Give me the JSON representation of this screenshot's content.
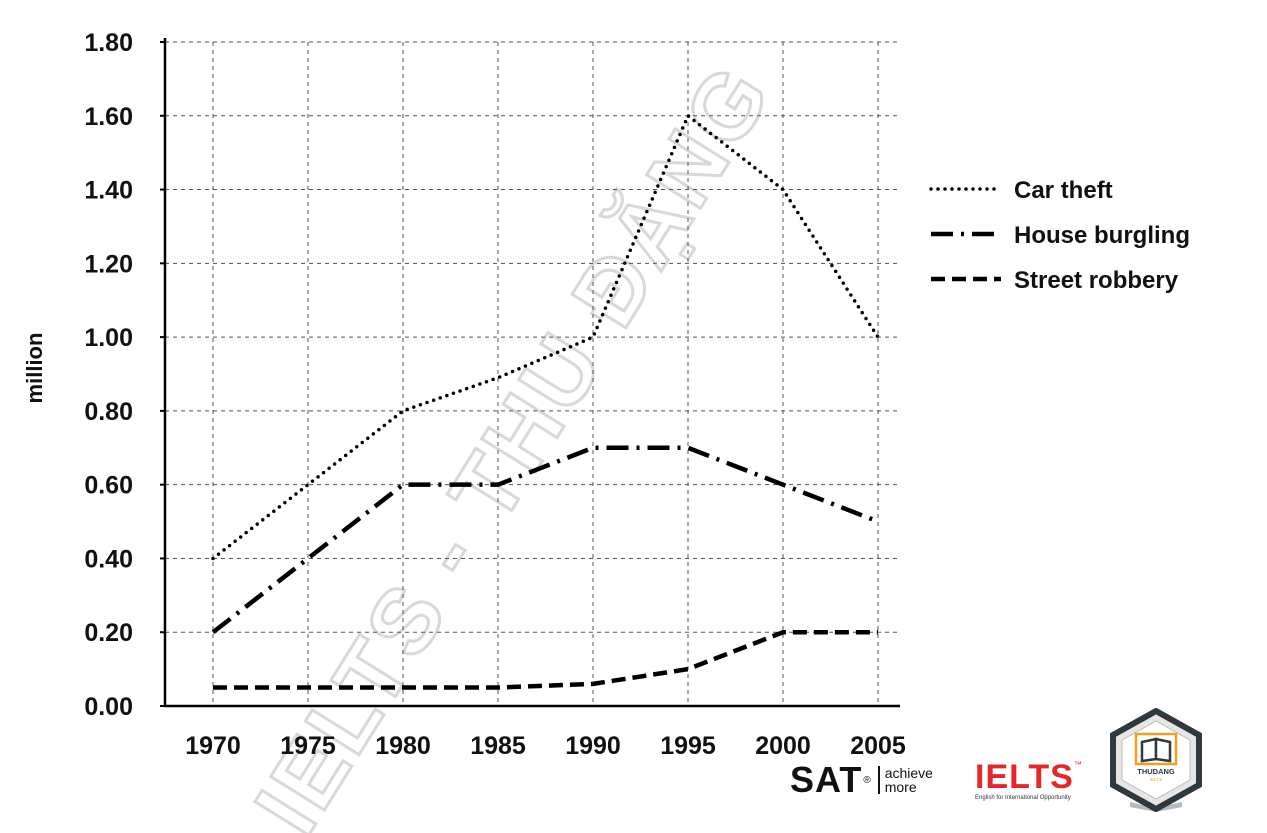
{
  "chart_data": {
    "type": "line",
    "title": "",
    "xlabel": "",
    "ylabel": "million",
    "x": [
      "1970",
      "1975",
      "1980",
      "1985",
      "1990",
      "1995",
      "2000",
      "2005"
    ],
    "yticks": [
      "0.00",
      "0.20",
      "0.40",
      "0.60",
      "0.80",
      "1.00",
      "1.20",
      "1.40",
      "1.60",
      "1.80"
    ],
    "ylim": [
      0,
      1.8
    ],
    "grid": true,
    "legend_position": "right",
    "series": [
      {
        "name": "Car theft",
        "style": "dotted",
        "values": [
          0.4,
          0.6,
          0.8,
          0.89,
          1.0,
          1.6,
          1.4,
          1.0
        ]
      },
      {
        "name": "House burgling",
        "style": "dash-dot",
        "values": [
          0.2,
          0.4,
          0.6,
          0.6,
          0.7,
          0.7,
          0.6,
          0.5
        ]
      },
      {
        "name": "Street robbery",
        "style": "dashed",
        "values": [
          0.05,
          0.05,
          0.05,
          0.05,
          0.06,
          0.1,
          0.2,
          0.2
        ]
      }
    ],
    "colors": {
      "lines": "#000000",
      "grid": "#555555"
    }
  },
  "watermark": {
    "text": "IELTS - THU ĐẶNG"
  },
  "logos": {
    "sat": {
      "word": "SAT",
      "reg": "®",
      "tagline_1": "achieve",
      "tagline_2": "more"
    },
    "ielts": {
      "word": "IELTS",
      "tm": "™",
      "subtitle": "English for International Opportunity",
      "color": "#e5262b"
    },
    "badge": {
      "text_1": "THUDANG",
      "text_2": "IELTS",
      "accent": "#f0a020"
    }
  }
}
